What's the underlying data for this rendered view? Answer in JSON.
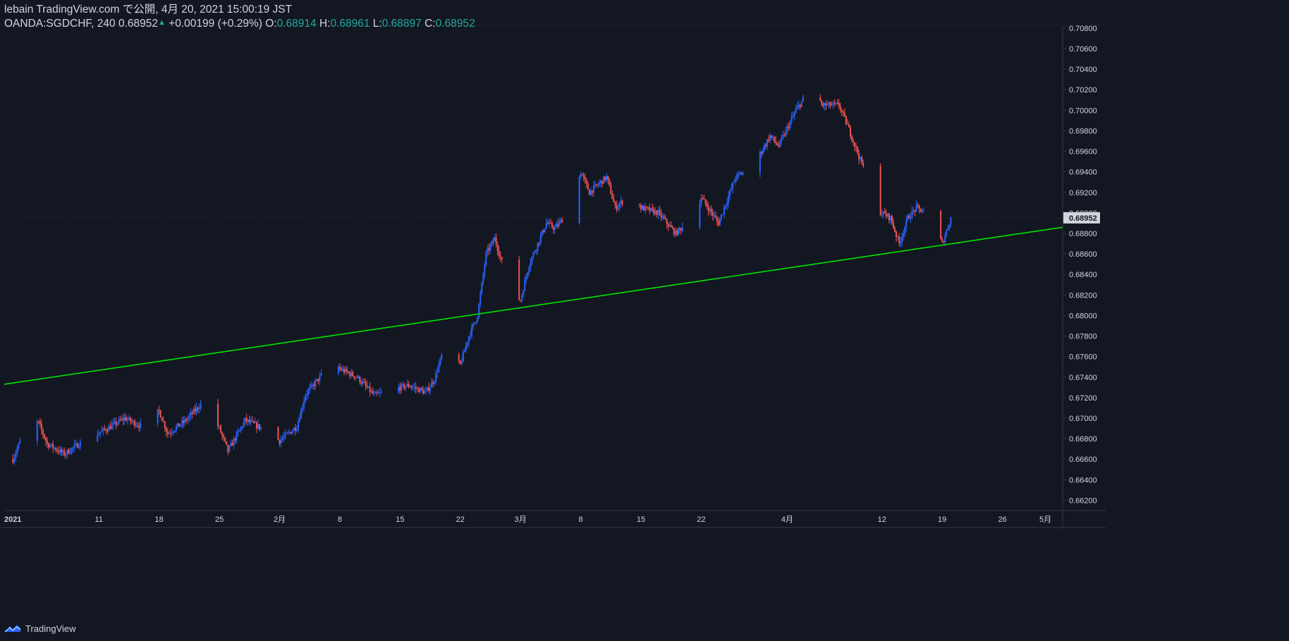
{
  "header": {
    "publish_line": "lebain TradingView.com で公開, 4月 20, 2021 15:00:19 JST",
    "symbol": "OANDA:SGDCHF, 240",
    "last": "0.68952",
    "change": "+0.00199 (+0.29%)",
    "o_label": "O:",
    "o_value": "0.68914",
    "h_label": "H:",
    "h_value": "0.68961",
    "l_label": "L:",
    "l_value": "0.68897",
    "c_label": "C:",
    "c_value": "0.68952"
  },
  "footer": {
    "brand": "TradingView"
  },
  "colors": {
    "background": "#131722",
    "up": "#2962ff",
    "down": "#ef5350",
    "trendline": "#00e600",
    "text": "#d1d4dc",
    "grid_border": "#363a45",
    "price_label_bg": "#d1d4dc"
  },
  "chart_data": {
    "type": "candlestick",
    "title": "OANDA:SGDCHF, 240",
    "ylim": [
      0.661,
      0.7082
    ],
    "y_ticks": [
      "0.70800",
      "0.70600",
      "0.70400",
      "0.70200",
      "0.70000",
      "0.69800",
      "0.69600",
      "0.69400",
      "0.69200",
      "0.69000",
      "0.68800",
      "0.68600",
      "0.68400",
      "0.68200",
      "0.68000",
      "0.67800",
      "0.67600",
      "0.67400",
      "0.67200",
      "0.67000",
      "0.66800",
      "0.66600",
      "0.66400",
      "0.66200"
    ],
    "x_ticks": [
      "2021",
      "11",
      "18",
      "25",
      "2月",
      "8",
      "15",
      "22",
      "3月",
      "8",
      "15",
      "22",
      "4月",
      "12",
      "19",
      "26",
      "5月"
    ],
    "current_price_label": "0.68952",
    "current_price": 0.68952,
    "trendline": {
      "start": [
        "2020-12-31",
        0.6733
      ],
      "end": [
        "2021-05-03",
        0.6886
      ]
    },
    "close_path": [
      [
        "2021-01-01",
        0.666
      ],
      [
        "2021-01-03",
        0.67
      ],
      [
        "2021-01-04",
        0.6695
      ],
      [
        "2021-01-05",
        0.6675
      ],
      [
        "2021-01-07",
        0.6665
      ],
      [
        "2021-01-09",
        0.6677
      ],
      [
        "2021-01-12",
        0.669
      ],
      [
        "2021-01-14",
        0.67
      ],
      [
        "2021-01-16",
        0.6692
      ],
      [
        "2021-01-18",
        0.6707
      ],
      [
        "2021-01-19",
        0.6685
      ],
      [
        "2021-01-21",
        0.6697
      ],
      [
        "2021-01-23",
        0.6715
      ],
      [
        "2021-01-25",
        0.669
      ],
      [
        "2021-01-26",
        0.6668
      ],
      [
        "2021-01-28",
        0.6698
      ],
      [
        "2021-01-30",
        0.669
      ],
      [
        "2021-02-01",
        0.6678
      ],
      [
        "2021-02-03",
        0.6692
      ],
      [
        "2021-02-04",
        0.6723
      ],
      [
        "2021-02-06",
        0.6743
      ],
      [
        "2021-02-07",
        0.6757
      ],
      [
        "2021-02-08",
        0.6748
      ],
      [
        "2021-02-10",
        0.674
      ],
      [
        "2021-02-12",
        0.6722
      ],
      [
        "2021-02-14",
        0.6728
      ],
      [
        "2021-02-16",
        0.6732
      ],
      [
        "2021-02-18",
        0.6725
      ],
      [
        "2021-02-19",
        0.6738
      ],
      [
        "2021-02-20",
        0.6765
      ],
      [
        "2021-02-22",
        0.6752
      ],
      [
        "2021-02-23",
        0.678
      ],
      [
        "2021-02-24",
        0.68
      ],
      [
        "2021-02-25",
        0.686
      ],
      [
        "2021-02-26",
        0.6875
      ],
      [
        "2021-02-28",
        0.682
      ],
      [
        "2021-03-01",
        0.6815
      ],
      [
        "2021-03-02",
        0.685
      ],
      [
        "2021-03-04",
        0.689
      ],
      [
        "2021-03-05",
        0.6885
      ],
      [
        "2021-03-07",
        0.6905
      ],
      [
        "2021-03-08",
        0.694
      ],
      [
        "2021-03-09",
        0.692
      ],
      [
        "2021-03-11",
        0.6935
      ],
      [
        "2021-03-12",
        0.6905
      ],
      [
        "2021-03-14",
        0.692
      ],
      [
        "2021-03-15",
        0.6905
      ],
      [
        "2021-03-17",
        0.69
      ],
      [
        "2021-03-19",
        0.688
      ],
      [
        "2021-03-21",
        0.6895
      ],
      [
        "2021-03-22",
        0.6915
      ],
      [
        "2021-03-24",
        0.689
      ],
      [
        "2021-03-26",
        0.6935
      ],
      [
        "2021-03-28",
        0.6945
      ],
      [
        "2021-03-30",
        0.6975
      ],
      [
        "2021-03-31",
        0.6965
      ],
      [
        "2021-04-02",
        0.7
      ],
      [
        "2021-04-04",
        0.7025
      ],
      [
        "2021-04-05",
        0.7005
      ],
      [
        "2021-04-07",
        0.7005
      ],
      [
        "2021-04-08",
        0.6985
      ],
      [
        "2021-04-10",
        0.694
      ],
      [
        "2021-04-11",
        0.6905
      ],
      [
        "2021-04-13",
        0.6895
      ],
      [
        "2021-04-14",
        0.687
      ],
      [
        "2021-04-15",
        0.6895
      ],
      [
        "2021-04-16",
        0.6905
      ],
      [
        "2021-04-17",
        0.69
      ],
      [
        "2021-04-18",
        0.689
      ],
      [
        "2021-04-19",
        0.687
      ],
      [
        "2021-04-20",
        0.6895
      ]
    ]
  }
}
